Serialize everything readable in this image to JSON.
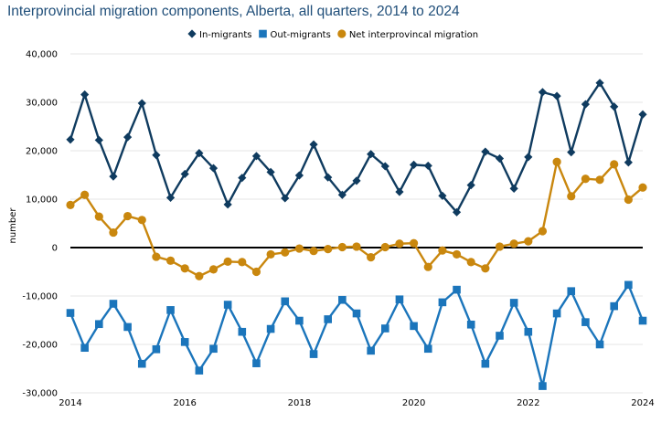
{
  "chart_data": {
    "type": "line",
    "title": "Interprovincial migration components, Alberta, all quarters, 2014 to 2024",
    "ylabel": "number",
    "xlabel": "",
    "ylim": [
      -30000,
      40000
    ],
    "xlim": [
      2014.0,
      2024.0
    ],
    "y_ticks": [
      40000,
      30000,
      20000,
      10000,
      0,
      -10000,
      -20000,
      -30000
    ],
    "y_tick_labels": [
      "40,000",
      "30,000",
      "20,000",
      "10,000",
      "0",
      "-10,000",
      "-20,000",
      "-30,000"
    ],
    "x_ticks": [
      2014,
      2016,
      2018,
      2020,
      2022,
      2024
    ],
    "x_tick_labels": [
      "2014",
      "2016",
      "2018",
      "2020",
      "2022",
      "2024"
    ],
    "legend_position": "top",
    "x": [
      2014.0,
      2014.25,
      2014.5,
      2014.75,
      2015.0,
      2015.25,
      2015.5,
      2015.75,
      2016.0,
      2016.25,
      2016.5,
      2016.75,
      2017.0,
      2017.25,
      2017.5,
      2017.75,
      2018.0,
      2018.25,
      2018.5,
      2018.75,
      2019.0,
      2019.25,
      2019.5,
      2019.75,
      2020.0,
      2020.25,
      2020.5,
      2020.75,
      2021.0,
      2021.25,
      2021.5,
      2021.75,
      2022.0,
      2022.25,
      2022.5,
      2022.75,
      2023.0,
      2023.25,
      2023.5,
      2023.75,
      2024.0
    ],
    "series": [
      {
        "name": "In-migrants",
        "color": "#0f3b5f",
        "marker": "diamond",
        "values": [
          22300,
          31600,
          22200,
          14700,
          22800,
          29800,
          19100,
          10300,
          15200,
          19500,
          16400,
          8900,
          14400,
          18900,
          15600,
          10200,
          14900,
          21300,
          14500,
          10900,
          13800,
          19300,
          16800,
          11500,
          17100,
          16900,
          10700,
          7300,
          12900,
          19800,
          18400,
          12200,
          18700,
          32100,
          31300,
          19700,
          29600,
          34000,
          29100,
          17600,
          27500
        ]
      },
      {
        "name": "Out-migrants",
        "color": "#1b75bb",
        "marker": "square",
        "values": [
          -13500,
          -20700,
          -15800,
          -11600,
          -16400,
          -24000,
          -21000,
          -12900,
          -19500,
          -25400,
          -20900,
          -11800,
          -17400,
          -23900,
          -16800,
          -11100,
          -15100,
          -22000,
          -14800,
          -10800,
          -13600,
          -21300,
          -16700,
          -10700,
          -16200,
          -20900,
          -11300,
          -8700,
          -15900,
          -24000,
          -18200,
          -11400,
          -17400,
          -28600,
          -13600,
          -9000,
          -15400,
          -20000,
          -12100,
          -7700,
          -15100
        ]
      },
      {
        "name": "Net interprovincal migration",
        "color": "#c9870e",
        "marker": "circle",
        "values": [
          8800,
          10900,
          6400,
          3100,
          6500,
          5700,
          -1900,
          -2700,
          -4300,
          -5900,
          -4500,
          -2900,
          -3000,
          -5000,
          -1400,
          -1000,
          -200,
          -700,
          -300,
          100,
          200,
          -2000,
          100,
          800,
          900,
          -4000,
          -600,
          -1400,
          -3000,
          -4300,
          200,
          800,
          1300,
          3400,
          17700,
          10600,
          14200,
          14000,
          17200,
          9900,
          12400
        ]
      }
    ]
  }
}
